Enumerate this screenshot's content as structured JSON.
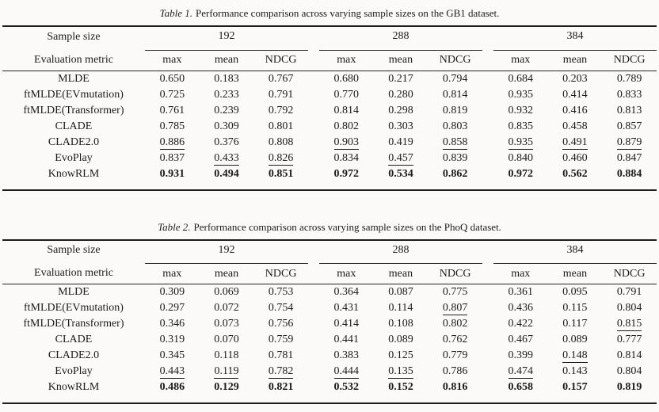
{
  "colors": {
    "background": "#fbfaf8",
    "ink": "#1b1b1b",
    "rule": "#242424"
  },
  "tables": [
    {
      "caption_label": "Table 1.",
      "caption_text": "Performance comparison across varying sample sizes on the GB1 dataset.",
      "header": {
        "row_label_1": "Sample size",
        "row_label_2": "Evaluation metric",
        "groups": [
          "192",
          "288",
          "384"
        ],
        "metrics": [
          "max",
          "mean",
          "NDCG"
        ]
      },
      "rows": [
        {
          "label": "MLDE",
          "cells": [
            {
              "v": "0.650"
            },
            {
              "v": "0.183"
            },
            {
              "v": "0.767"
            },
            {
              "v": "0.680"
            },
            {
              "v": "0.217"
            },
            {
              "v": "0.794"
            },
            {
              "v": "0.684"
            },
            {
              "v": "0.203"
            },
            {
              "v": "0.789"
            }
          ]
        },
        {
          "label": "ftMLDE(EVmutation)",
          "cells": [
            {
              "v": "0.725"
            },
            {
              "v": "0.233"
            },
            {
              "v": "0.791"
            },
            {
              "v": "0.770"
            },
            {
              "v": "0.280"
            },
            {
              "v": "0.814"
            },
            {
              "v": "0.935"
            },
            {
              "v": "0.414"
            },
            {
              "v": "0.833"
            }
          ]
        },
        {
          "label": "ftMLDE(Transformer)",
          "cells": [
            {
              "v": "0.761"
            },
            {
              "v": "0.239"
            },
            {
              "v": "0.792"
            },
            {
              "v": "0.814"
            },
            {
              "v": "0.298"
            },
            {
              "v": "0.819"
            },
            {
              "v": "0.932"
            },
            {
              "v": "0.416"
            },
            {
              "v": "0.813"
            }
          ]
        },
        {
          "label": "CLADE",
          "cells": [
            {
              "v": "0.785"
            },
            {
              "v": "0.309"
            },
            {
              "v": "0.801"
            },
            {
              "v": "0.802"
            },
            {
              "v": "0.303"
            },
            {
              "v": "0.803"
            },
            {
              "v": "0.835"
            },
            {
              "v": "0.458"
            },
            {
              "v": "0.857"
            }
          ]
        },
        {
          "label": "CLADE2.0",
          "cells": [
            {
              "v": "0.886",
              "e": "u"
            },
            {
              "v": "0.376"
            },
            {
              "v": "0.808"
            },
            {
              "v": "0.903",
              "e": "u"
            },
            {
              "v": "0.419"
            },
            {
              "v": "0.858",
              "e": "u"
            },
            {
              "v": "0.935",
              "e": "u"
            },
            {
              "v": "0.491",
              "e": "u"
            },
            {
              "v": "0.879",
              "e": "u"
            }
          ]
        },
        {
          "label": "EvoPlay",
          "cells": [
            {
              "v": "0.837"
            },
            {
              "v": "0.433",
              "e": "u"
            },
            {
              "v": "0.826",
              "e": "u"
            },
            {
              "v": "0.834"
            },
            {
              "v": "0.457",
              "e": "u"
            },
            {
              "v": "0.839"
            },
            {
              "v": "0.840"
            },
            {
              "v": "0.460"
            },
            {
              "v": "0.847"
            }
          ]
        },
        {
          "label": "KnowRLM",
          "cells": [
            {
              "v": "0.931",
              "e": "b"
            },
            {
              "v": "0.494",
              "e": "b"
            },
            {
              "v": "0.851",
              "e": "b"
            },
            {
              "v": "0.972",
              "e": "b"
            },
            {
              "v": "0.534",
              "e": "b"
            },
            {
              "v": "0.862",
              "e": "b"
            },
            {
              "v": "0.972",
              "e": "b"
            },
            {
              "v": "0.562",
              "e": "b"
            },
            {
              "v": "0.884",
              "e": "b"
            }
          ]
        }
      ]
    },
    {
      "caption_label": "Table 2.",
      "caption_text": "Performance comparison across varying sample sizes on the PhoQ dataset.",
      "header": {
        "row_label_1": "Sample size",
        "row_label_2": "Evaluation metric",
        "groups": [
          "192",
          "288",
          "384"
        ],
        "metrics": [
          "max",
          "mean",
          "NDCG"
        ]
      },
      "rows": [
        {
          "label": "MLDE",
          "cells": [
            {
              "v": "0.309"
            },
            {
              "v": "0.069"
            },
            {
              "v": "0.753"
            },
            {
              "v": "0.364"
            },
            {
              "v": "0.087"
            },
            {
              "v": "0.775"
            },
            {
              "v": "0.361"
            },
            {
              "v": "0.095"
            },
            {
              "v": "0.791"
            }
          ]
        },
        {
          "label": "ftMLDE(EVmutation)",
          "cells": [
            {
              "v": "0.297"
            },
            {
              "v": "0.072"
            },
            {
              "v": "0.754"
            },
            {
              "v": "0.431"
            },
            {
              "v": "0.114"
            },
            {
              "v": "0.807",
              "e": "u"
            },
            {
              "v": "0.436"
            },
            {
              "v": "0.115"
            },
            {
              "v": "0.804"
            }
          ]
        },
        {
          "label": "ftMLDE(Transformer)",
          "cells": [
            {
              "v": "0.346"
            },
            {
              "v": "0.073"
            },
            {
              "v": "0.756"
            },
            {
              "v": "0.414"
            },
            {
              "v": "0.108"
            },
            {
              "v": "0.802"
            },
            {
              "v": "0.422"
            },
            {
              "v": "0.117"
            },
            {
              "v": "0.815",
              "e": "u"
            }
          ]
        },
        {
          "label": "CLADE",
          "cells": [
            {
              "v": "0.319"
            },
            {
              "v": "0.070"
            },
            {
              "v": "0.759"
            },
            {
              "v": "0.441"
            },
            {
              "v": "0.089"
            },
            {
              "v": "0.762"
            },
            {
              "v": "0.467"
            },
            {
              "v": "0.089"
            },
            {
              "v": "0.777"
            }
          ]
        },
        {
          "label": "CLADE2.0",
          "cells": [
            {
              "v": "0.345"
            },
            {
              "v": "0.118"
            },
            {
              "v": "0.781"
            },
            {
              "v": "0.383"
            },
            {
              "v": "0.125"
            },
            {
              "v": "0.779"
            },
            {
              "v": "0.399"
            },
            {
              "v": "0.148",
              "e": "u"
            },
            {
              "v": "0.814"
            }
          ]
        },
        {
          "label": "EvoPlay",
          "cells": [
            {
              "v": "0.443",
              "e": "u"
            },
            {
              "v": "0.119",
              "e": "u"
            },
            {
              "v": "0.782",
              "e": "u"
            },
            {
              "v": "0.444",
              "e": "u"
            },
            {
              "v": "0.135",
              "e": "u"
            },
            {
              "v": "0.786"
            },
            {
              "v": "0.474",
              "e": "u"
            },
            {
              "v": "0.143"
            },
            {
              "v": "0.804"
            }
          ]
        },
        {
          "label": "KnowRLM",
          "cells": [
            {
              "v": "0.486",
              "e": "b"
            },
            {
              "v": "0.129",
              "e": "b"
            },
            {
              "v": "0.821",
              "e": "b"
            },
            {
              "v": "0.532",
              "e": "b"
            },
            {
              "v": "0.152",
              "e": "b"
            },
            {
              "v": "0.816",
              "e": "b"
            },
            {
              "v": "0.658",
              "e": "b"
            },
            {
              "v": "0.157",
              "e": "b"
            },
            {
              "v": "0.819",
              "e": "b"
            }
          ]
        }
      ]
    }
  ]
}
